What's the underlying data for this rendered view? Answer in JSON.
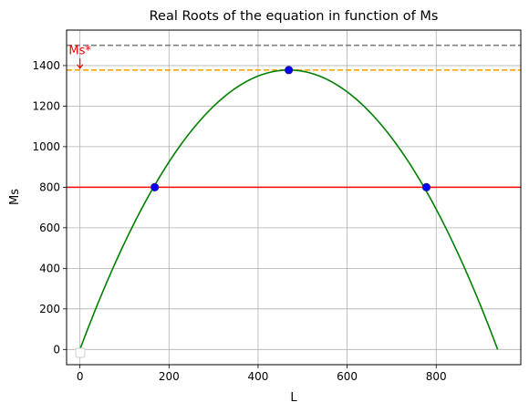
{
  "chart_data": {
    "type": "line",
    "title": "Real Roots of the equation in function of Ms",
    "xlabel": "L",
    "ylabel": "Ms",
    "xlim": [
      -30,
      990
    ],
    "ylim": [
      -75,
      1575
    ],
    "xticks": [
      0,
      200,
      400,
      600,
      800
    ],
    "yticks": [
      0,
      200,
      400,
      600,
      800,
      1000,
      1200,
      1400
    ],
    "x_tick_labels": [
      "0",
      "200",
      "400",
      "600",
      "800"
    ],
    "y_tick_labels": [
      "0",
      "200",
      "400",
      "600",
      "800",
      "1000",
      "1200",
      "1400"
    ],
    "grid": true,
    "legend": "lower-left, empty",
    "curve": {
      "shape": "parabola",
      "color": "#008000",
      "x_start": 0,
      "x_end": 938,
      "vertex_x": 469,
      "vertex_y": 1378
    },
    "horizontal_lines": [
      {
        "y": 1500,
        "color": "#808080",
        "style": "dashed"
      },
      {
        "y": 1378,
        "color": "#ffa500",
        "style": "dashed"
      },
      {
        "y": 800,
        "color": "#ff0000",
        "style": "solid"
      }
    ],
    "points": [
      {
        "x": 168,
        "y": 800
      },
      {
        "x": 469,
        "y": 1378
      },
      {
        "x": 778,
        "y": 800
      }
    ],
    "point_color": "#0000ff",
    "annotation": {
      "text": "Ms*",
      "color": "#ff0000",
      "x": 0,
      "y": 1378,
      "text_x": 0,
      "text_y": 1455
    }
  }
}
